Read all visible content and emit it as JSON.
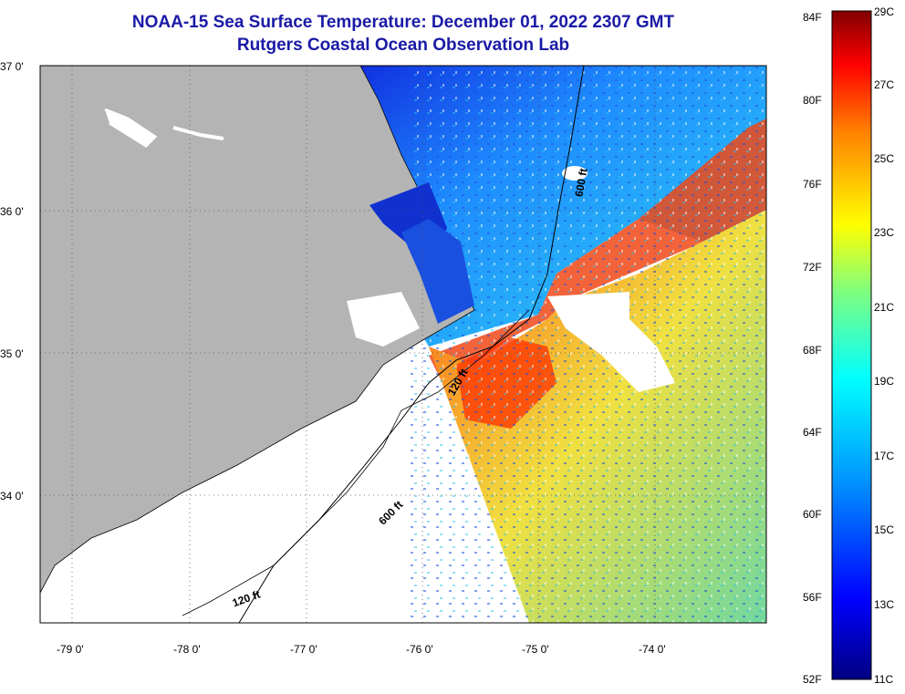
{
  "title": "NOAA-15 Sea Surface Temperature:  December 01, 2022 2307 GMT",
  "subtitle": "Rutgers Coastal Ocean Observation Lab",
  "map": {
    "lat_labels": [
      "37 0'",
      "36 0'",
      "35 0'",
      "34 0'"
    ],
    "lon_labels": [
      "-79 0'",
      "-78 0'",
      "-77 0'",
      "-76 0'",
      "-75 0'",
      "-74 0'"
    ],
    "contours": [
      "600 ft",
      "120 ft",
      "600 ft",
      "120 ft"
    ],
    "colors": {
      "land": "#b4b4b4",
      "nodata": "#ffffff",
      "cool": "#1e8cff",
      "warm": "#ff3a00"
    }
  },
  "colorbar": {
    "fahrenheit": [
      "84F",
      "80F",
      "76F",
      "72F",
      "68F",
      "64F",
      "60F",
      "56F",
      "52F"
    ],
    "celsius": [
      "29C",
      "27C",
      "25C",
      "23C",
      "21C",
      "19C",
      "17C",
      "15C",
      "13C",
      "11C"
    ]
  }
}
